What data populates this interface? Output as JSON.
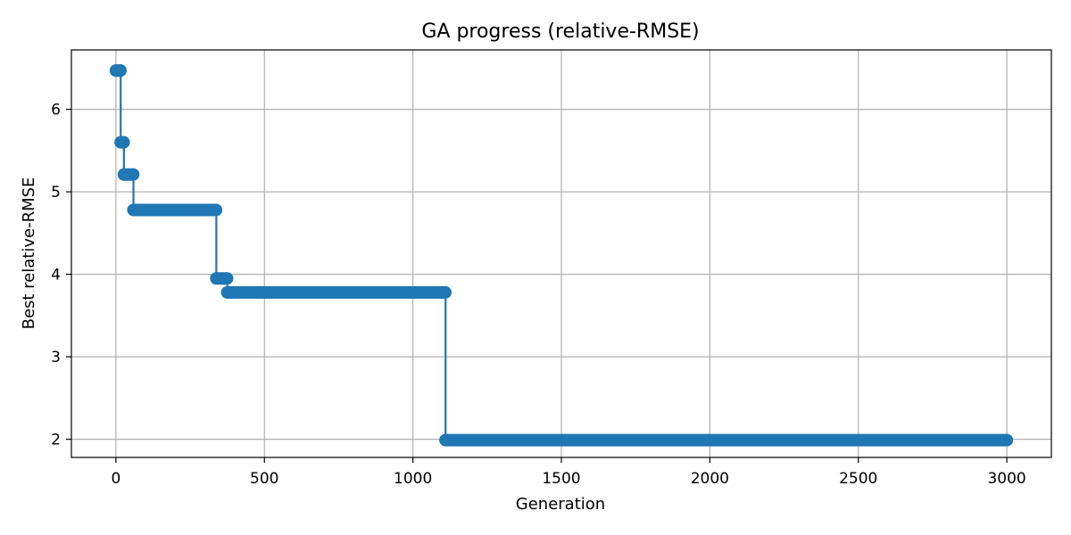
{
  "chart_data": {
    "type": "line",
    "title": "GA progress (relative-RMSE)",
    "xlabel": "Generation",
    "ylabel": "Best relative-RMSE",
    "xlim": [
      -150,
      3150
    ],
    "ylim": [
      1.78,
      6.72
    ],
    "xticks": [
      0,
      500,
      1000,
      1500,
      2000,
      2500,
      3000
    ],
    "yticks": [
      2,
      3,
      4,
      5,
      6
    ],
    "grid": true,
    "legend": "none",
    "line_color": "#1f77b4",
    "marker": "circle",
    "steps": [
      {
        "x_start": 0,
        "x_end": 15,
        "value": 6.47
      },
      {
        "x_start": 16,
        "x_end": 26,
        "value": 5.6
      },
      {
        "x_start": 27,
        "x_end": 58,
        "value": 5.21
      },
      {
        "x_start": 59,
        "x_end": 337,
        "value": 4.78
      },
      {
        "x_start": 338,
        "x_end": 374,
        "value": 3.95
      },
      {
        "x_start": 375,
        "x_end": 1109,
        "value": 3.78
      },
      {
        "x_start": 1110,
        "x_end": 3000,
        "value": 1.99
      }
    ]
  }
}
